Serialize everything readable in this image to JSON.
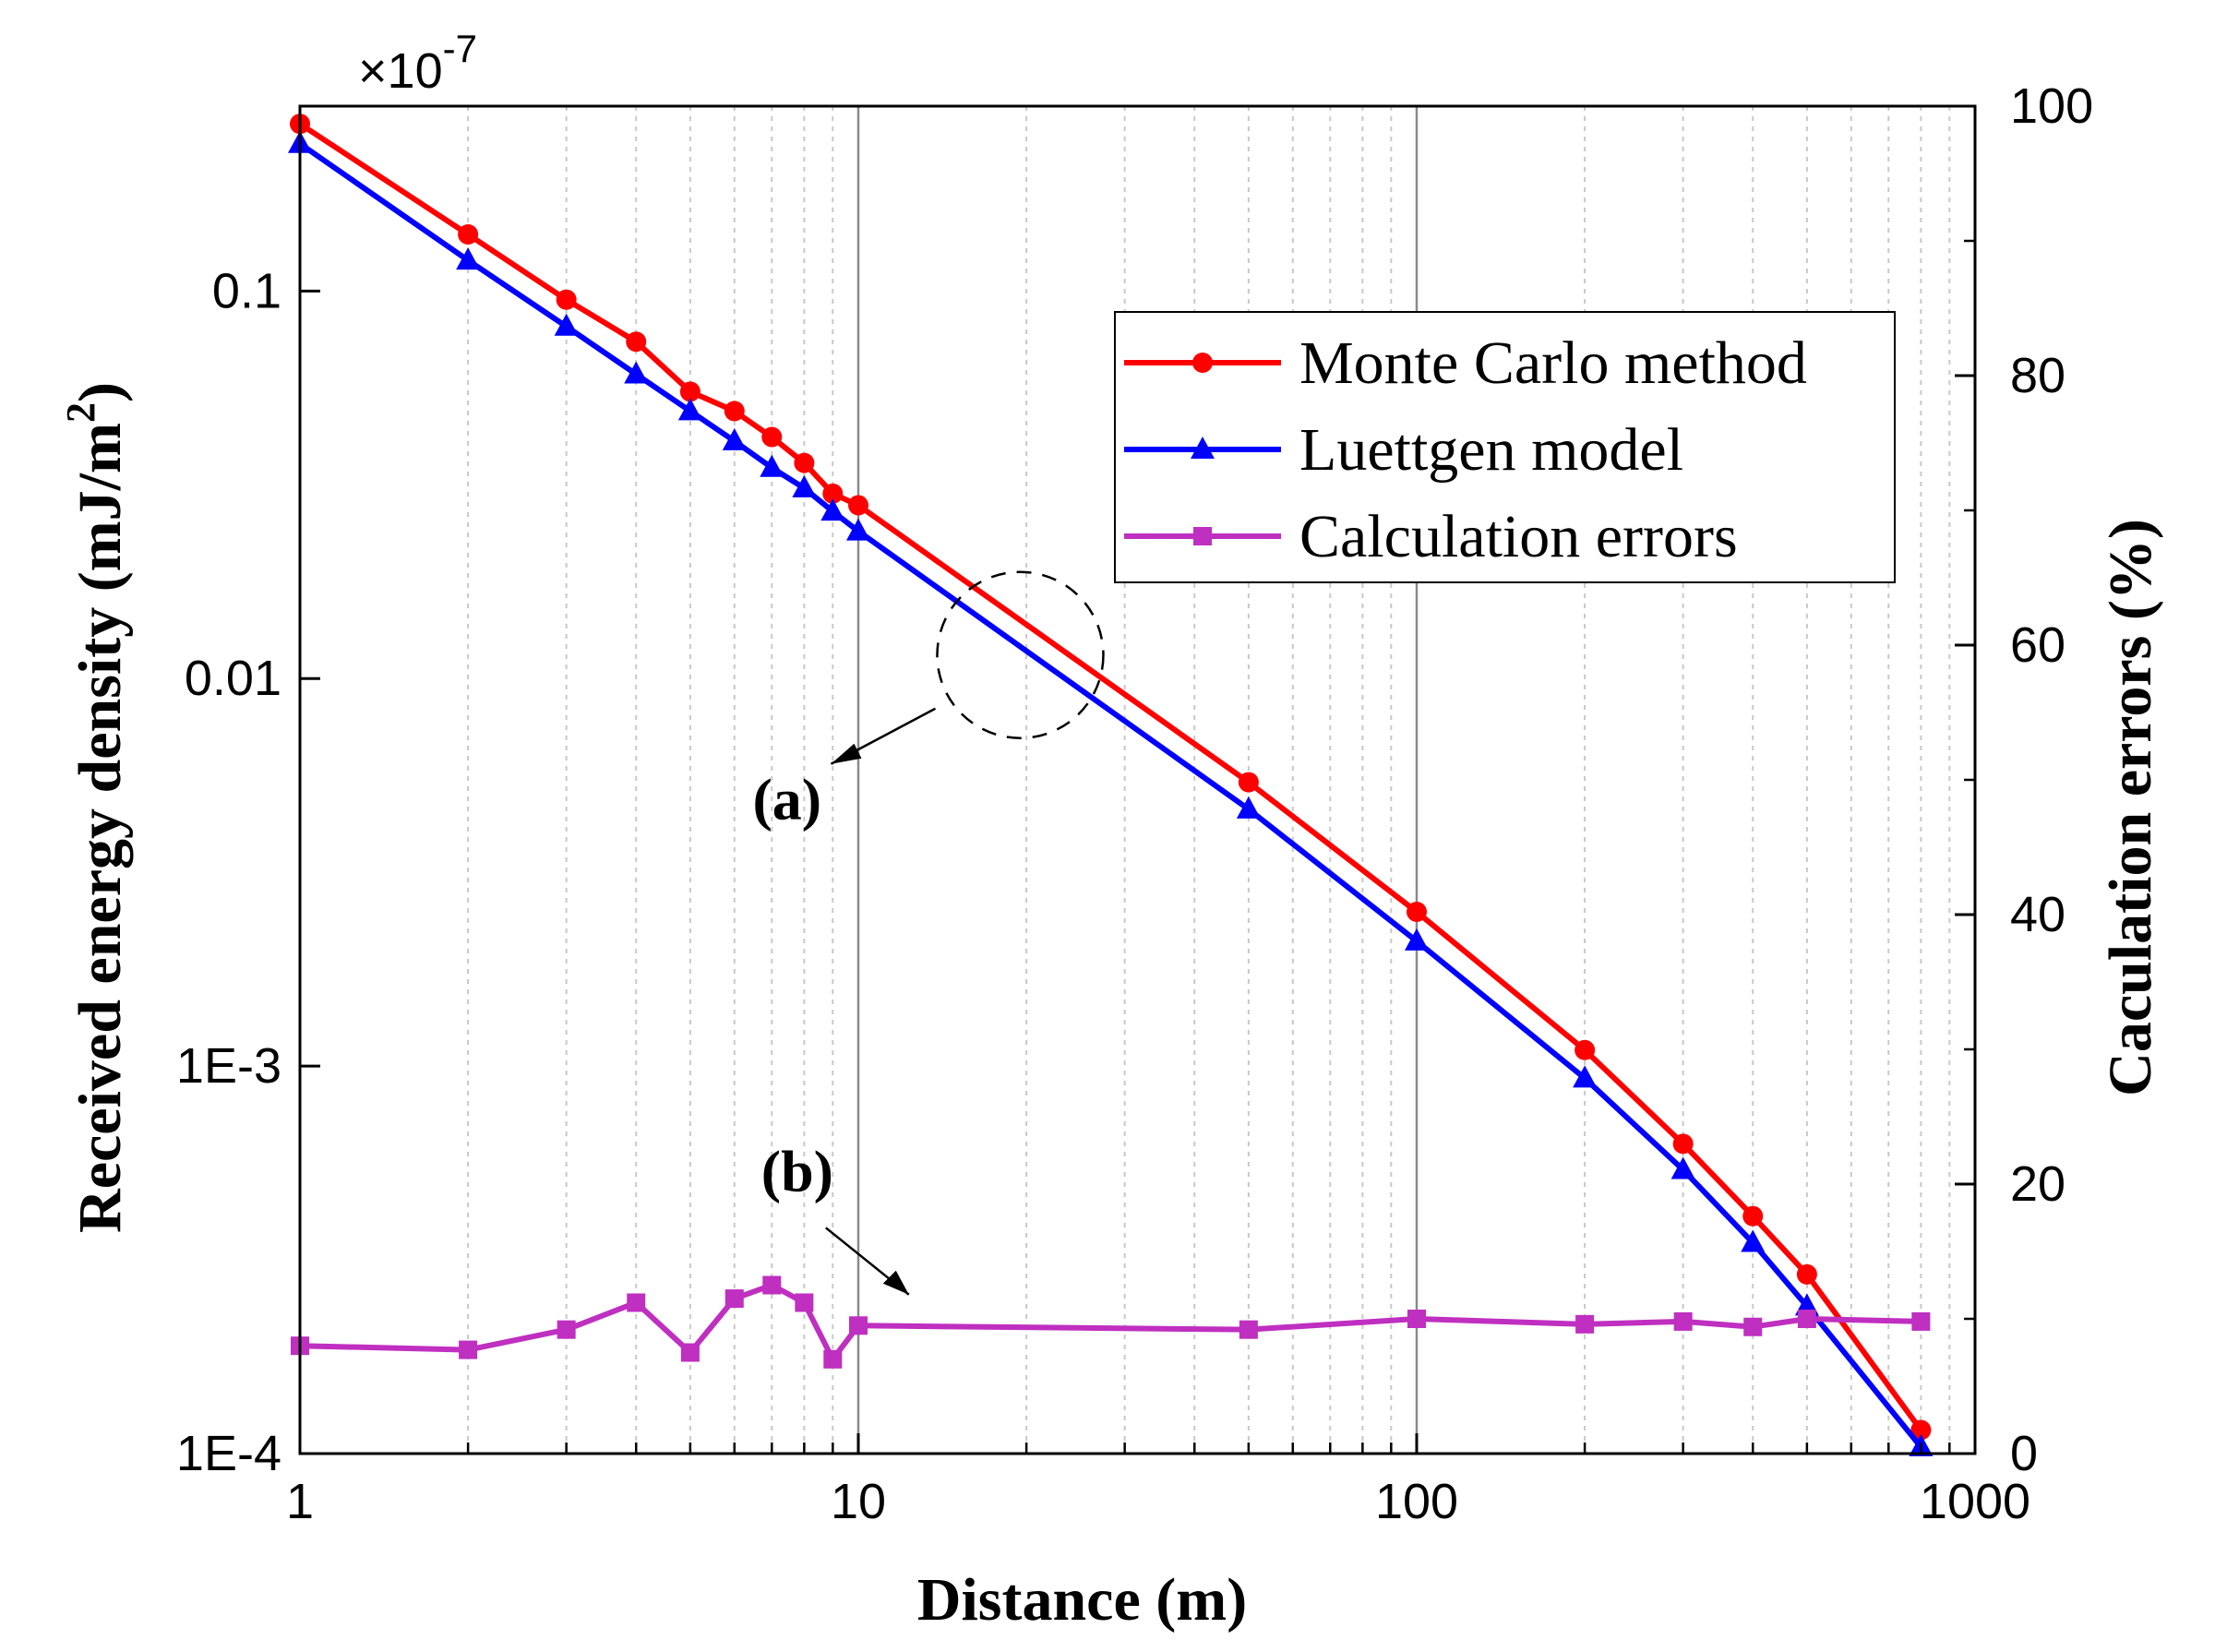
{
  "chart_data": {
    "type": "line",
    "title": "",
    "xlabel": "Distance (m)",
    "ylabel_left": "Received energy density (mJ/m",
    "ylabel_left_sup": "2",
    "ylabel_left_close": ")",
    "ylabel_right": "Caculation errors (%)",
    "scale_label": "×10",
    "scale_exp": "-7",
    "x_scale": "log",
    "xlim": [
      1,
      1000
    ],
    "y_left_scale": "log",
    "y_left_lim": [
      0.0001,
      0.3
    ],
    "y_right_lim": [
      0,
      100
    ],
    "grid": "vertical",
    "x_ticks": [
      {
        "value": 1,
        "label": "1"
      },
      {
        "value": 10,
        "label": "10"
      },
      {
        "value": 100,
        "label": "100"
      },
      {
        "value": 1000,
        "label": "1000"
      }
    ],
    "y_left_ticks": [
      {
        "value": 0.1,
        "label": "0.1"
      },
      {
        "value": 0.01,
        "label": "0.01"
      },
      {
        "value": 0.001,
        "label": "1E-3"
      },
      {
        "value": 0.0001,
        "label": "1E-4"
      }
    ],
    "y_right_ticks": [
      {
        "value": 0,
        "label": "0"
      },
      {
        "value": 20,
        "label": "20"
      },
      {
        "value": 40,
        "label": "40"
      },
      {
        "value": 60,
        "label": "60"
      },
      {
        "value": 80,
        "label": "80"
      },
      {
        "value": 100,
        "label": "100"
      }
    ],
    "series": [
      {
        "name": "Monte Carlo method",
        "axis": "left",
        "color": "#ff0000",
        "marker": "circle",
        "x": [
          1,
          2,
          3,
          4,
          5,
          6,
          7,
          8,
          9,
          10,
          50,
          100,
          200,
          300,
          400,
          500,
          800
        ],
        "y": [
          0.27,
          0.14,
          0.095,
          0.074,
          0.055,
          0.049,
          0.042,
          0.036,
          0.03,
          0.028,
          0.0054,
          0.0025,
          0.0011,
          0.00063,
          0.00041,
          0.00029,
          0.000115
        ]
      },
      {
        "name": "Luettgen model",
        "axis": "left",
        "color": "#0000ff",
        "marker": "triangle",
        "x": [
          1,
          2,
          3,
          4,
          5,
          6,
          7,
          8,
          9,
          10,
          50,
          100,
          200,
          300,
          400,
          500,
          800
        ],
        "y": [
          0.24,
          0.12,
          0.081,
          0.061,
          0.049,
          0.041,
          0.035,
          0.031,
          0.027,
          0.024,
          0.0046,
          0.0021,
          0.00093,
          0.00054,
          0.00035,
          0.00024,
          0.000104
        ]
      },
      {
        "name": "Calculation errors",
        "axis": "right",
        "color": "#bf2fc0",
        "marker": "square",
        "x": [
          1,
          2,
          3,
          4,
          5,
          6,
          7,
          8,
          9,
          10,
          50,
          100,
          200,
          300,
          400,
          500,
          800
        ],
        "y": [
          8,
          7.7,
          9.2,
          11.2,
          7.5,
          11.5,
          12.5,
          11.2,
          7,
          9.5,
          9.2,
          10,
          9.6,
          9.8,
          9.4,
          10,
          9.8
        ]
      }
    ],
    "legend": {
      "placement": "top-right",
      "entries": [
        "Monte Carlo method",
        "Luettgen model",
        "Calculation errors"
      ]
    },
    "annotations": [
      {
        "label": "(a)",
        "target": "gap between Monte Carlo and Luettgen curves near 20 m"
      },
      {
        "label": "(b)",
        "target": "calculation errors curve"
      }
    ]
  }
}
